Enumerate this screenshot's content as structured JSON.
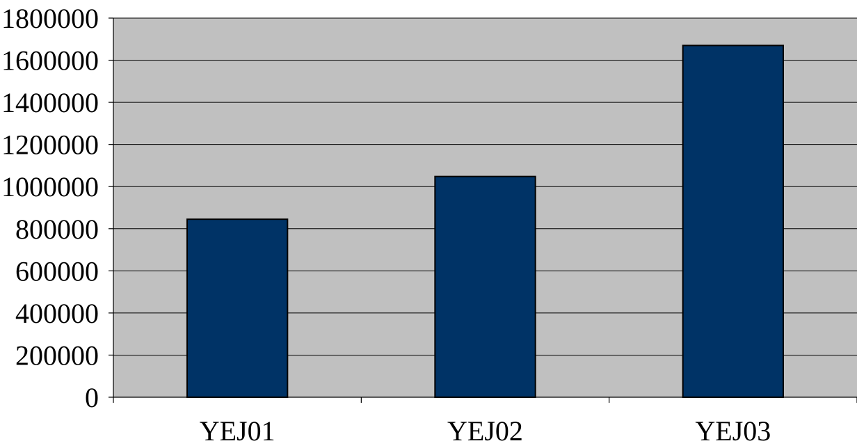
{
  "chart_data": {
    "type": "bar",
    "title": "",
    "xlabel": "",
    "ylabel": "",
    "categories": [
      "YEJ01",
      "YEJ02",
      "YEJ03"
    ],
    "values": [
      845000,
      1048000,
      1670000
    ],
    "ylim": [
      0,
      1800000
    ],
    "ytick_step": 200000,
    "yticks": [
      "0",
      "200000",
      "400000",
      "600000",
      "800000",
      "1000000",
      "1200000",
      "1400000",
      "1600000",
      "1800000"
    ],
    "grid": true,
    "legend": "none",
    "colors": {
      "bar": "#003366",
      "plot_background": "#c0c0c0",
      "page_background": "#ffffff",
      "gridline": "#000000"
    }
  }
}
